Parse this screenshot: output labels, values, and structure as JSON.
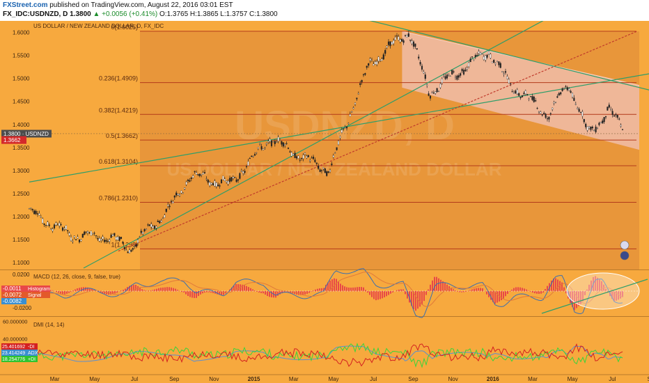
{
  "header": {
    "brand": "FXStreet.com",
    "published": "published on TradingView.com, August 22, 2016 03:01 EST",
    "symbol": "FX_IDC:USDNZD, D",
    "last": "1.3800",
    "change": "▲ +0.0056 (+0.41%)",
    "ohlc": "O:1.3765 H:1.3865 L:1.3757 C:1.3800"
  },
  "colors": {
    "background": "#f7a93e",
    "fib_zone": "#e8963a",
    "channel_fill": "#f2c2b8",
    "fib_line": "#b33a1a",
    "trend_green": "#2e9e6a",
    "dotted_red": "#c0392b",
    "candle": "#222222",
    "macd_line": "#3a6fb0",
    "signal_line": "#e07a3a",
    "histogram": "#e84848",
    "di_plus": "#3ad43a",
    "di_minus": "#d42020",
    "adx": "#5b8fd0",
    "price_label": "#4d4d4d",
    "fib_price_label": "#d42a2a"
  },
  "chart_data": {
    "type": "candlestick",
    "title": "US DOLLAR / NEW ZEALAND DOLLAR, D, FX_IDC",
    "watermark": "USDNZD, D",
    "watermark_sub": "US DOLLAR / NEW ZEALAND DOLLAR",
    "x_labels": [
      "Mar",
      "May",
      "Jul",
      "Sep",
      "Nov",
      "2015",
      "Mar",
      "May",
      "Jul",
      "Sep",
      "Nov",
      "2016",
      "Mar",
      "May",
      "Jul",
      "Sep"
    ],
    "y_ticks": [
      "1.6000",
      "1.5500",
      "1.5000",
      "1.4500",
      "1.4000",
      "1.3500",
      "1.3000",
      "1.2500",
      "1.2000",
      "1.1500",
      "1.1000"
    ],
    "ylim": [
      1.085,
      1.625
    ],
    "price_labels": [
      {
        "text": "1.3800 · USDNZD",
        "value": 1.38
      },
      {
        "text": "1.3662",
        "value": 1.3662
      }
    ],
    "fib_levels": [
      {
        "label": "0(1.6025)",
        "value": 1.6025
      },
      {
        "label": "0.236(1.4909)",
        "value": 1.4909
      },
      {
        "label": "0.382(1.4219)",
        "value": 1.4219
      },
      {
        "label": "0.5(1.3662)",
        "value": 1.3662
      },
      {
        "label": "0.618(1.3104)",
        "value": 1.3104
      },
      {
        "label": "0.786(1.2310)",
        "value": 1.231
      },
      {
        "label": "1(1.1298)",
        "value": 1.1298
      }
    ],
    "key_points": [
      {
        "date": "2014-02",
        "value": 1.21
      },
      {
        "date": "2014-04",
        "value": 1.16
      },
      {
        "date": "2014-06",
        "value": 1.155
      },
      {
        "date": "2014-07",
        "value": 1.13
      },
      {
        "date": "2014-09",
        "value": 1.22
      },
      {
        "date": "2014-10",
        "value": 1.29
      },
      {
        "date": "2014-12",
        "value": 1.27
      },
      {
        "date": "2015-02",
        "value": 1.37
      },
      {
        "date": "2015-04",
        "value": 1.32
      },
      {
        "date": "2015-05",
        "value": 1.3
      },
      {
        "date": "2015-06",
        "value": 1.42
      },
      {
        "date": "2015-07",
        "value": 1.53
      },
      {
        "date": "2015-09",
        "value": 1.6025
      },
      {
        "date": "2015-10",
        "value": 1.47
      },
      {
        "date": "2016-01",
        "value": 1.56
      },
      {
        "date": "2016-02",
        "value": 1.49
      },
      {
        "date": "2016-04",
        "value": 1.42
      },
      {
        "date": "2016-05",
        "value": 1.49
      },
      {
        "date": "2016-06",
        "value": 1.38
      },
      {
        "date": "2016-07",
        "value": 1.43
      },
      {
        "date": "2016-08",
        "value": 1.38
      }
    ],
    "macd": {
      "label": "MACD (12, 26, close, 9, false, true)",
      "y_ticks": [
        "0.0200",
        "0.0000",
        "-0.0200"
      ],
      "ylim": [
        -0.03,
        0.025
      ],
      "values": [
        {
          "text": "-0.0011",
          "name": "Histogram"
        },
        {
          "text": "-0.0072",
          "name": "Signal"
        },
        {
          "text": "-0.0082",
          "name": ""
        }
      ]
    },
    "dmi": {
      "label": "DMI (14, 14)",
      "y_ticks": [
        "60.000000",
        "40.000000",
        "20.000000"
      ],
      "ylim": [
        0,
        65
      ],
      "values": [
        {
          "text": "25.401692",
          "name": "-DI"
        },
        {
          "text": "23.414249",
          "name": "ADX"
        },
        {
          "text": "18.254776",
          "name": "+DI"
        }
      ]
    }
  }
}
